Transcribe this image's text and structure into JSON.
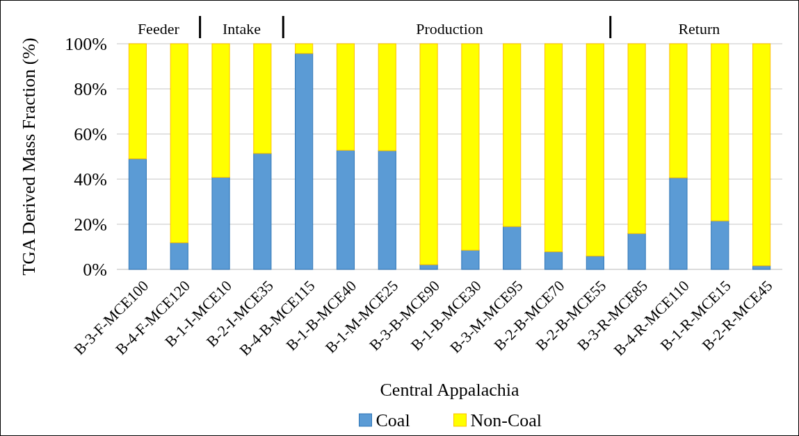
{
  "chart_data": {
    "type": "bar",
    "stacked": true,
    "ylabel": "TGA Derived Mass Fraction (%)",
    "xlabel": "Central Appalachia",
    "categories": [
      "B-3-F-MCE100",
      "B-4-F-MCE120",
      "B-1-I-MCE10",
      "B-2-I-MCE35",
      "B-4-B-MCE115",
      "B-1-B-MCE40",
      "B-1-M-MCE25",
      "B-3-B-MCE90",
      "B-1-B-MCE30",
      "B-3-M-MCE95",
      "B-2-B-MCE70",
      "B-2-B-MCE55",
      "B-3-R-MCE85",
      "B-4-R-MCE110",
      "B-1-R-MCE15",
      "B-2-R-MCE45"
    ],
    "series": [
      {
        "name": "Coal",
        "color": "#5b9bd5",
        "values": [
          49,
          11.8,
          40.8,
          51.4,
          95.7,
          52.8,
          52.6,
          2.1,
          8.5,
          19,
          7.8,
          5.9,
          15.9,
          40.6,
          21.5,
          1.6
        ]
      },
      {
        "name": "Non-Coal",
        "color": "#ffff00",
        "values": [
          51,
          88.2,
          59.2,
          48.6,
          4.3,
          47.2,
          47.4,
          97.9,
          91.5,
          81,
          92.2,
          94.1,
          84.1,
          59.4,
          78.5,
          98.4
        ]
      }
    ],
    "ylim": [
      0,
      100
    ],
    "yticks": [
      {
        "value": 0,
        "label": "0%"
      },
      {
        "value": 20,
        "label": "20%"
      },
      {
        "value": 40,
        "label": "40%"
      },
      {
        "value": 60,
        "label": "60%"
      },
      {
        "value": 80,
        "label": "80%"
      },
      {
        "value": 100,
        "label": "100%"
      }
    ],
    "grid": "y",
    "legend": "bottom",
    "annotations": [
      "Feeder",
      "Intake",
      "Production",
      "Return"
    ]
  }
}
